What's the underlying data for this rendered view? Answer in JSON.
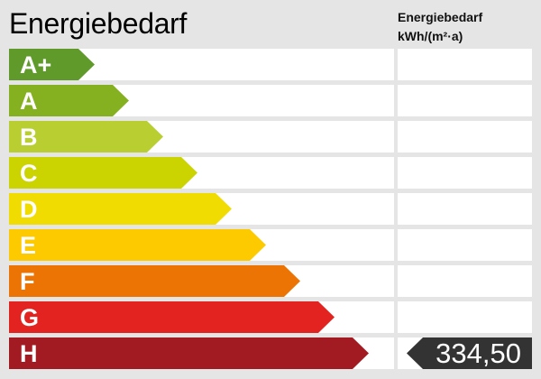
{
  "title": "Energiebedarf",
  "unit_header": {
    "line1": "Energiebedarf",
    "line2": "kWh/(m²·a)"
  },
  "chart_data": {
    "type": "bar",
    "categories": [
      "A+",
      "A",
      "B",
      "C",
      "D",
      "E",
      "F",
      "G",
      "H"
    ],
    "colors": [
      "#5f9a2a",
      "#85b01f",
      "#b9cf31",
      "#cbd300",
      "#f0dc00",
      "#fdca00",
      "#ec7404",
      "#e3231f",
      "#a31b22"
    ],
    "selected_class": "H",
    "value": "334,50",
    "marker_color": "#333333"
  }
}
